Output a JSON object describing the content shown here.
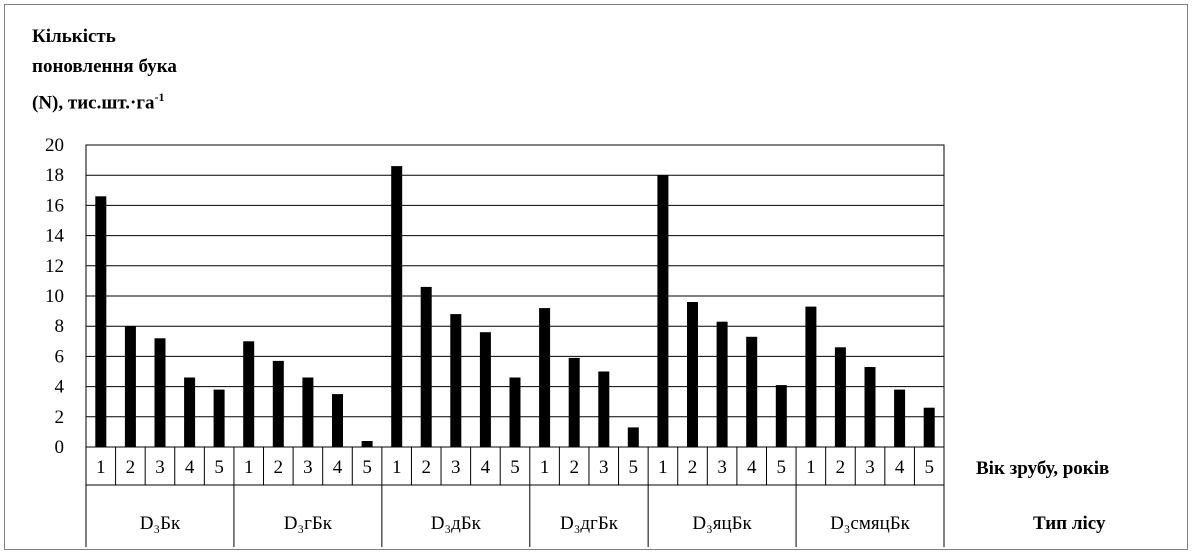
{
  "chart_data": {
    "type": "bar",
    "ylabel_lines": [
      "Кількість",
      "поновлення бука",
      "(N), тис.шт.·га",
      "-1"
    ],
    "x_row1_label": "Вік зрубу, років",
    "x_row2_label": "Тип лісу",
    "ylim": [
      0,
      20
    ],
    "yticks": [
      0,
      2,
      4,
      6,
      8,
      10,
      12,
      14,
      16,
      18,
      20
    ],
    "grid": true,
    "bar_color": "#000000",
    "groups": [
      {
        "name": "D₃Бк",
        "categories": [
          "1",
          "2",
          "3",
          "4",
          "5"
        ],
        "values": [
          16.6,
          8.0,
          7.2,
          4.6,
          3.8
        ]
      },
      {
        "name": "D₃гБк",
        "categories": [
          "1",
          "2",
          "3",
          "4",
          "5"
        ],
        "values": [
          7.0,
          5.7,
          4.6,
          3.5,
          0.4
        ]
      },
      {
        "name": "D₃дБк",
        "categories": [
          "1",
          "2",
          "3",
          "4",
          "5"
        ],
        "values": [
          18.6,
          10.6,
          8.8,
          7.6,
          4.6
        ]
      },
      {
        "name": "D₃дгБк",
        "categories": [
          "1",
          "2",
          "3",
          "5"
        ],
        "values": [
          9.2,
          5.9,
          5.0,
          1.3
        ]
      },
      {
        "name": "D₃яцБк",
        "categories": [
          "1",
          "2",
          "3",
          "4",
          "5"
        ],
        "values": [
          18.0,
          9.6,
          8.3,
          7.3,
          4.1
        ]
      },
      {
        "name": "D₃смяцБк",
        "categories": [
          "1",
          "2",
          "3",
          "4",
          "5"
        ],
        "values": [
          9.3,
          6.6,
          5.3,
          3.8,
          2.6
        ]
      }
    ]
  }
}
